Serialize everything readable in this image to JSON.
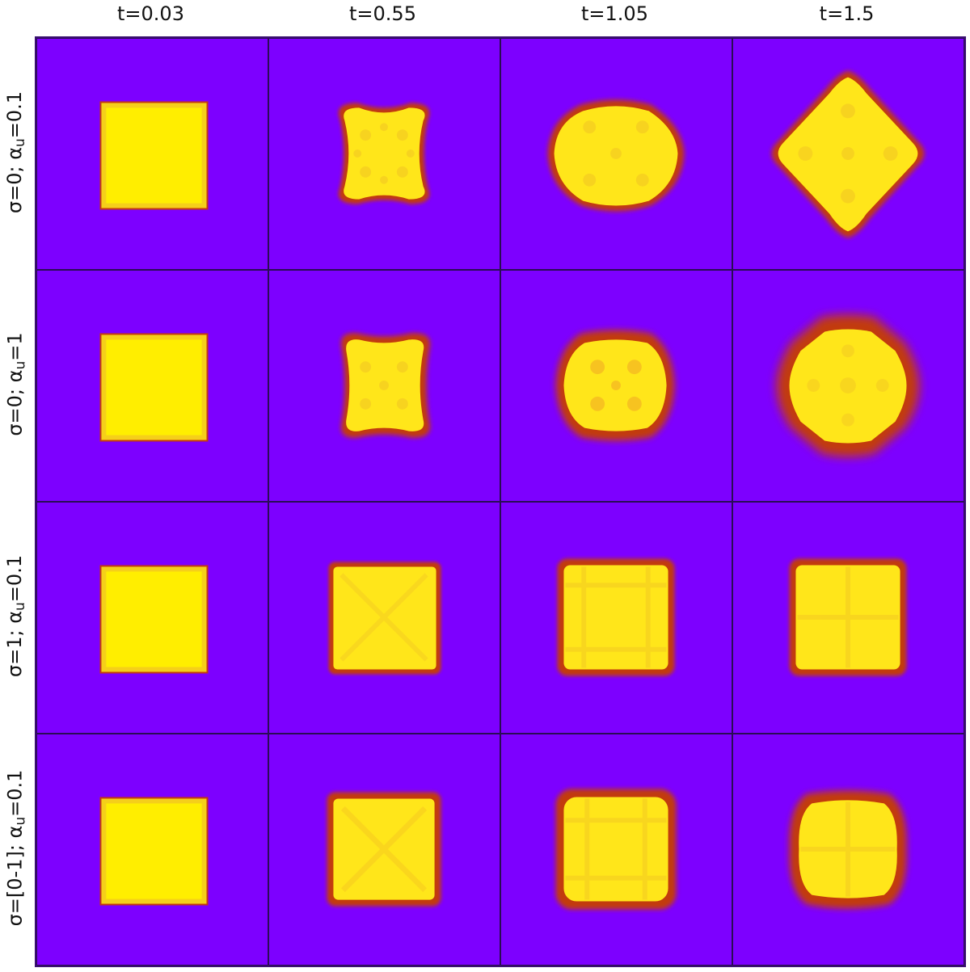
{
  "columns": [
    {
      "label": "t=0.03"
    },
    {
      "label": "t=0.55"
    },
    {
      "label": "t=1.05"
    },
    {
      "label": "t=1.5"
    }
  ],
  "rows": [
    {
      "sigma": "σ=0; α",
      "sub": "u",
      "alpha": "=0.1"
    },
    {
      "sigma": "σ=0; α",
      "sub": "u",
      "alpha": "=1"
    },
    {
      "sigma": "σ=1; α",
      "sub": "u",
      "alpha": "=0.1"
    },
    {
      "sigma": "σ=[0-1]; α",
      "sub": "u",
      "alpha": "=0.1"
    }
  ],
  "colors": {
    "background": "#7d00ff",
    "fill": "#ffee00",
    "rim": "#c23a10",
    "frame": "#3a1070"
  }
}
